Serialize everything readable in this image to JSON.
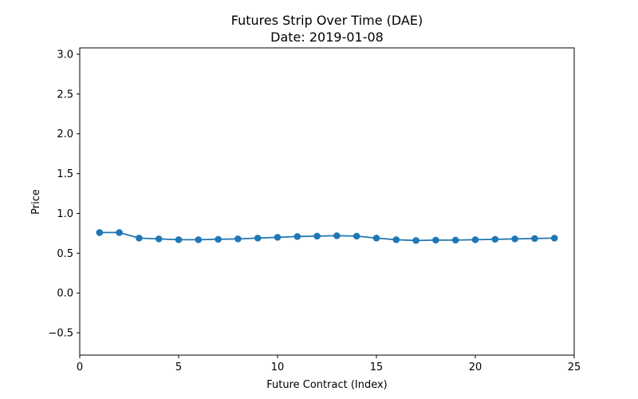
{
  "chart_data": {
    "type": "line",
    "title": "Futures Strip Over Time (DAE)",
    "subtitle": "Date: 2019-01-08",
    "xlabel": "Future Contract (Index)",
    "ylabel": "Price",
    "xlim": [
      0,
      25
    ],
    "ylim": [
      -0.78,
      3.08
    ],
    "xticks": [
      0,
      5,
      10,
      15,
      20,
      25
    ],
    "xtick_labels": [
      "0",
      "5",
      "10",
      "15",
      "20",
      "25"
    ],
    "yticks": [
      -0.5,
      0.0,
      0.5,
      1.0,
      1.5,
      2.0,
      2.5,
      3.0
    ],
    "ytick_labels": [
      "−0.5",
      "0.0",
      "0.5",
      "1.0",
      "1.5",
      "2.0",
      "2.5",
      "3.0"
    ],
    "grid": false,
    "series": [
      {
        "name": "DAE",
        "color": "#1f77b4",
        "x": [
          1,
          2,
          3,
          4,
          5,
          6,
          7,
          8,
          9,
          10,
          11,
          12,
          13,
          14,
          15,
          16,
          17,
          18,
          19,
          20,
          21,
          22,
          23,
          24
        ],
        "values": [
          0.76,
          0.76,
          0.69,
          0.68,
          0.67,
          0.67,
          0.675,
          0.68,
          0.69,
          0.7,
          0.71,
          0.715,
          0.72,
          0.715,
          0.69,
          0.67,
          0.66,
          0.665,
          0.665,
          0.67,
          0.675,
          0.68,
          0.685,
          0.69
        ]
      }
    ]
  }
}
